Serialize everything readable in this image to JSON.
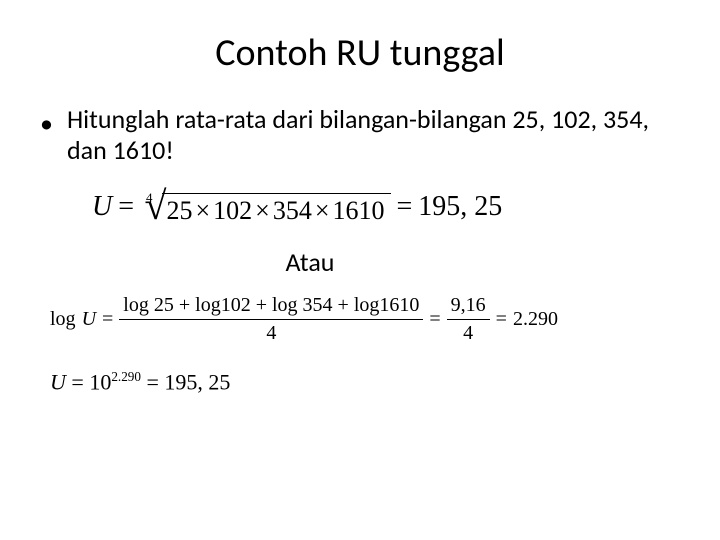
{
  "title": "Contoh RU tunggal",
  "bullet": "Hitunglah rata-rata dari bilangan-bilangan 25, 102, 354, dan 1610!",
  "eq1": {
    "lhs": "U",
    "root_index": "4",
    "radicand_parts": [
      "25",
      "102",
      "354",
      "1610"
    ],
    "result": "195, 25",
    "mult_sign": "×"
  },
  "atau_label": "Atau",
  "eq2": {
    "lhs": "log",
    "lhs_var": "U",
    "numerator_terms": [
      "log 25",
      "log102",
      "log 354",
      "log1610"
    ],
    "denominator": "4",
    "mid_num": "9,16",
    "mid_den": "4",
    "result": "2.290",
    "plus": "+"
  },
  "eq3": {
    "var": "U",
    "base": "10",
    "exp": "2.290",
    "result": "195, 25"
  },
  "style": {
    "bg": "#ffffff",
    "text": "#000000",
    "title_fontsize": 38,
    "body_fontsize": 26,
    "formula_font": "Times New Roman"
  }
}
